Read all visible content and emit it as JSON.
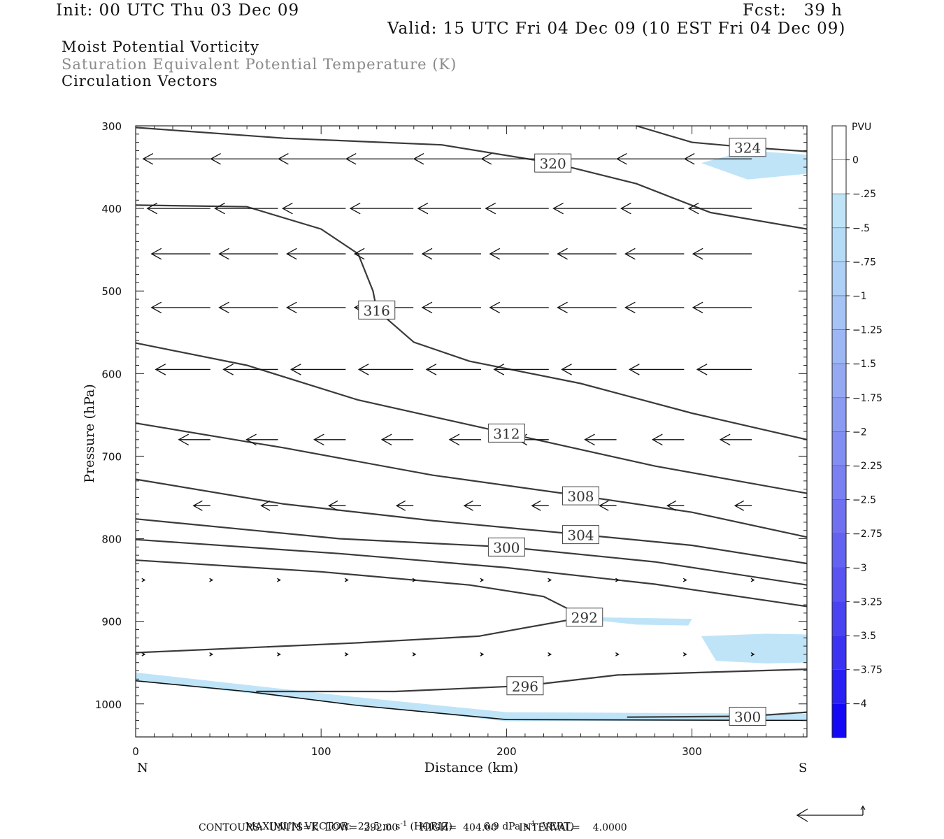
{
  "header": {
    "init": "Init: 00 UTC Thu 03 Dec 09",
    "fcst": "Fcst:   39 h",
    "valid": "Valid: 15 UTC Fri 04 Dec 09 (10 EST Fri 04 Dec 09)",
    "field1": "Moist Potential Vorticity",
    "field2": "Saturation Equivalent Potential Temperature (K)",
    "field3": "Circulation Vectors",
    "field2_color": "#8a8a8a"
  },
  "chart_data": {
    "type": "cross-section",
    "xlabel": "Distance (km)",
    "ylabel": "Pressure (hPa)",
    "xlim": [
      0,
      362
    ],
    "ylim": [
      1040,
      300
    ],
    "x_ticks": [
      "0",
      "100",
      "200",
      "300"
    ],
    "y_ticks": [
      "300",
      "400",
      "500",
      "600",
      "700",
      "800",
      "900",
      "1000"
    ],
    "left_end_label": "N",
    "right_end_label": "S",
    "theta_contours": [
      {
        "label": "324",
        "points": [
          [
            270,
            300
          ],
          [
            300,
            320
          ],
          [
            330,
            326
          ],
          [
            362,
            331
          ]
        ]
      },
      {
        "label": "320",
        "points": [
          [
            0,
            302
          ],
          [
            80,
            315
          ],
          [
            165,
            323
          ],
          [
            225,
            345
          ],
          [
            270,
            370
          ],
          [
            310,
            405
          ],
          [
            362,
            425
          ]
        ]
      },
      {
        "label": "316",
        "points": [
          [
            0,
            396
          ],
          [
            60,
            398
          ],
          [
            100,
            425
          ],
          [
            120,
            455
          ],
          [
            128,
            500
          ],
          [
            130,
            523
          ],
          [
            150,
            562
          ],
          [
            180,
            585
          ],
          [
            240,
            612
          ],
          [
            300,
            648
          ],
          [
            362,
            680
          ]
        ]
      },
      {
        "label": "312",
        "points": [
          [
            0,
            563
          ],
          [
            60,
            590
          ],
          [
            120,
            632
          ],
          [
            200,
            672
          ],
          [
            280,
            712
          ],
          [
            362,
            745
          ]
        ]
      },
      {
        "label": "308",
        "points": [
          [
            0,
            660
          ],
          [
            80,
            690
          ],
          [
            160,
            723
          ],
          [
            240,
            748
          ],
          [
            300,
            768
          ],
          [
            362,
            798
          ]
        ]
      },
      {
        "label": "304",
        "points": [
          [
            0,
            728
          ],
          [
            80,
            758
          ],
          [
            160,
            778
          ],
          [
            240,
            795
          ],
          [
            300,
            808
          ],
          [
            362,
            830
          ]
        ]
      },
      {
        "label": "300",
        "points": [
          [
            0,
            776
          ],
          [
            110,
            800
          ],
          [
            200,
            810
          ],
          [
            280,
            828
          ],
          [
            362,
            856
          ]
        ]
      },
      {
        "label": "",
        "points": [
          [
            0,
            801
          ],
          [
            110,
            818
          ],
          [
            200,
            835
          ],
          [
            280,
            855
          ],
          [
            362,
            882
          ]
        ]
      },
      {
        "label": "292",
        "points": [
          [
            0,
            826
          ],
          [
            100,
            840
          ],
          [
            180,
            856
          ],
          [
            220,
            870
          ],
          [
            242,
            895
          ],
          [
            185,
            918
          ],
          [
            120,
            926
          ],
          [
            0,
            938
          ]
        ]
      },
      {
        "label": "296",
        "points": [
          [
            65,
            985
          ],
          [
            140,
            985
          ],
          [
            210,
            978
          ],
          [
            260,
            965
          ],
          [
            362,
            958
          ]
        ]
      },
      {
        "label": "300",
        "points": [
          [
            265,
            1016
          ],
          [
            330,
            1015
          ],
          [
            362,
            1010
          ]
        ]
      }
    ],
    "ground_line": [
      [
        0,
        972
      ],
      [
        60,
        985
      ],
      [
        120,
        1002
      ],
      [
        200,
        1019
      ],
      [
        362,
        1020
      ]
    ],
    "vector_rows": [
      {
        "p": 340,
        "u": -32
      },
      {
        "p": 400,
        "u": -30
      },
      {
        "p": 455,
        "u": -28
      },
      {
        "p": 520,
        "u": -28
      },
      {
        "p": 595,
        "u": -26
      },
      {
        "p": 680,
        "u": -15
      },
      {
        "p": 760,
        "u": -8
      },
      {
        "p": 850,
        "u": 1
      },
      {
        "p": 940,
        "u": 1
      }
    ],
    "mpv_negative_shading": [
      [
        [
          305,
          345
        ],
        [
          330,
          330
        ],
        [
          362,
          335
        ],
        [
          362,
          358
        ],
        [
          330,
          365
        ]
      ],
      [
        [
          245,
          895
        ],
        [
          300,
          897
        ],
        [
          298,
          905
        ],
        [
          270,
          904
        ],
        [
          245,
          898
        ]
      ],
      [
        [
          305,
          918
        ],
        [
          340,
          915
        ],
        [
          362,
          916
        ],
        [
          362,
          950
        ],
        [
          340,
          951
        ],
        [
          313,
          948
        ]
      ],
      [
        [
          0,
          962
        ],
        [
          120,
          992
        ],
        [
          200,
          1010
        ],
        [
          362,
          1012
        ],
        [
          362,
          1020
        ],
        [
          200,
          1021
        ],
        [
          0,
          972
        ]
      ]
    ],
    "colorbar": {
      "title": "PVU",
      "labels": [
        "0",
        "-.25",
        "-.5",
        "-.75",
        "-1",
        "-1.25",
        "-1.5",
        "-1.75",
        "-2",
        "-2.25",
        "-2.5",
        "-2.75",
        "-3",
        "-3.25",
        "-3.5",
        "-3.75",
        "-4"
      ],
      "colors": [
        "#ffffff",
        "#ffffff",
        "#bfe4f8",
        "#b5dbf7",
        "#aecff6",
        "#a6c3f5",
        "#9db6f4",
        "#95a9f3",
        "#8c9bf2",
        "#838ef2",
        "#7a80f1",
        "#7070f1",
        "#6462f1",
        "#5853f1",
        "#4a43f1",
        "#3c33f2",
        "#2a20f3",
        "#1508f5"
      ]
    }
  },
  "footer": {
    "max_vector_label": "MAXIMUM VECTOR:",
    "horiz_value": "23.5 m s",
    "horiz_unit": "(HORIZ)",
    "vert_value": "6.9 dPa s",
    "vert_unit": "(VERT)",
    "exponent": "-1",
    "contours": "CONTOURS:  UNITS=K  LOW=  292.00       HIGH=  404.00       INTERVAL=    4.0000"
  }
}
